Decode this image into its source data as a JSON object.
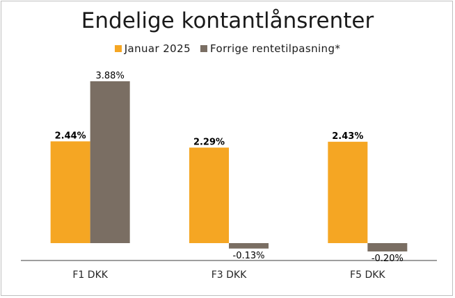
{
  "chart_data": {
    "type": "bar",
    "title": "Endelige kontantlånsrenter",
    "categories": [
      "F1 DKK",
      "F3 DKK",
      "F5 DKK"
    ],
    "series": [
      {
        "name": "Januar 2025",
        "color": "#f5a623",
        "values": [
          2.44,
          2.29,
          2.43
        ],
        "labels": [
          "2.44%",
          "2.29%",
          "2.43%"
        ],
        "label_style": "bold"
      },
      {
        "name": "Forrige rentetilpasning*",
        "color": "#7a6e63",
        "values": [
          3.88,
          -0.13,
          -0.2
        ],
        "labels": [
          "3.88%",
          "-0.13%",
          "-0.20%"
        ],
        "label_style": "normal"
      }
    ],
    "ylim": [
      -0.4,
      4.0
    ],
    "xlabel": "",
    "ylabel": "",
    "grid": false,
    "legend": "top-center"
  }
}
